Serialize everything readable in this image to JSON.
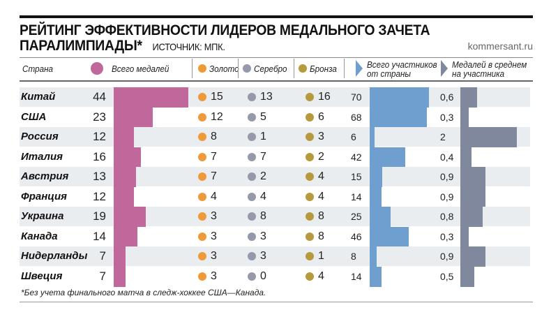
{
  "title_line1": "РЕЙТИНГ ЭФФЕКТИВНОСТИ ЛИДЕРОВ МЕДАЛЬНОГО ЗАЧЕТА",
  "title_line2": "ПАРАЛИМПИАДЫ*",
  "source": "ИСТОЧНИК: МПК.",
  "site": "kommersant.ru",
  "footnote": "*Без учета финального матча в следж-хоккее США—Канада.",
  "colors": {
    "total": "#c0679b",
    "gold": "#ee9a3a",
    "silver": "#9599a9",
    "bronze": "#b79a3e",
    "participants": "#6f9fcf",
    "average": "#7f889c",
    "row_shade": "#e9edf0"
  },
  "chart_data": {
    "type": "table",
    "columns": {
      "country": "Страна",
      "total": "Всего медалей",
      "gold": "Золото",
      "silver": "Серебро",
      "bronze": "Бронза",
      "participants_1": "Всего участников",
      "participants_2": "от страны",
      "average_1": "Медалей в среднем",
      "average_2": "на участника"
    },
    "rows": [
      {
        "country": "Китай",
        "total": 44,
        "gold": 15,
        "silver": 13,
        "bronze": 16,
        "participants": 70,
        "average": "0,6",
        "avg_value": 0.6
      },
      {
        "country": "США",
        "total": 23,
        "gold": 12,
        "silver": 5,
        "bronze": 6,
        "participants": 68,
        "average": "0,3",
        "avg_value": 0.3
      },
      {
        "country": "Россия",
        "total": 12,
        "gold": 8,
        "silver": 1,
        "bronze": 3,
        "participants": 6,
        "average": "2",
        "avg_value": 2
      },
      {
        "country": "Италия",
        "total": 16,
        "gold": 7,
        "silver": 7,
        "bronze": 2,
        "participants": 42,
        "average": "0,4",
        "avg_value": 0.4
      },
      {
        "country": "Австрия",
        "total": 13,
        "gold": 7,
        "silver": 2,
        "bronze": 4,
        "participants": 15,
        "average": "0,9",
        "avg_value": 0.9
      },
      {
        "country": "Франция",
        "total": 12,
        "gold": 4,
        "silver": 4,
        "bronze": 4,
        "participants": 14,
        "average": "0,9",
        "avg_value": 0.9
      },
      {
        "country": "Украина",
        "total": 19,
        "gold": 3,
        "silver": 8,
        "bronze": 8,
        "participants": 25,
        "average": "0,8",
        "avg_value": 0.8
      },
      {
        "country": "Канада",
        "total": 14,
        "gold": 3,
        "silver": 3,
        "bronze": 8,
        "participants": 46,
        "average": "0,3",
        "avg_value": 0.3
      },
      {
        "country": "Нидерланды",
        "total": 7,
        "gold": 3,
        "silver": 3,
        "bronze": 1,
        "participants": 8,
        "average": "0,9",
        "avg_value": 0.9
      },
      {
        "country": "Швеция",
        "total": 7,
        "gold": 3,
        "silver": 0,
        "bronze": 4,
        "participants": 14,
        "average": "0,5",
        "avg_value": 0.5
      }
    ]
  }
}
